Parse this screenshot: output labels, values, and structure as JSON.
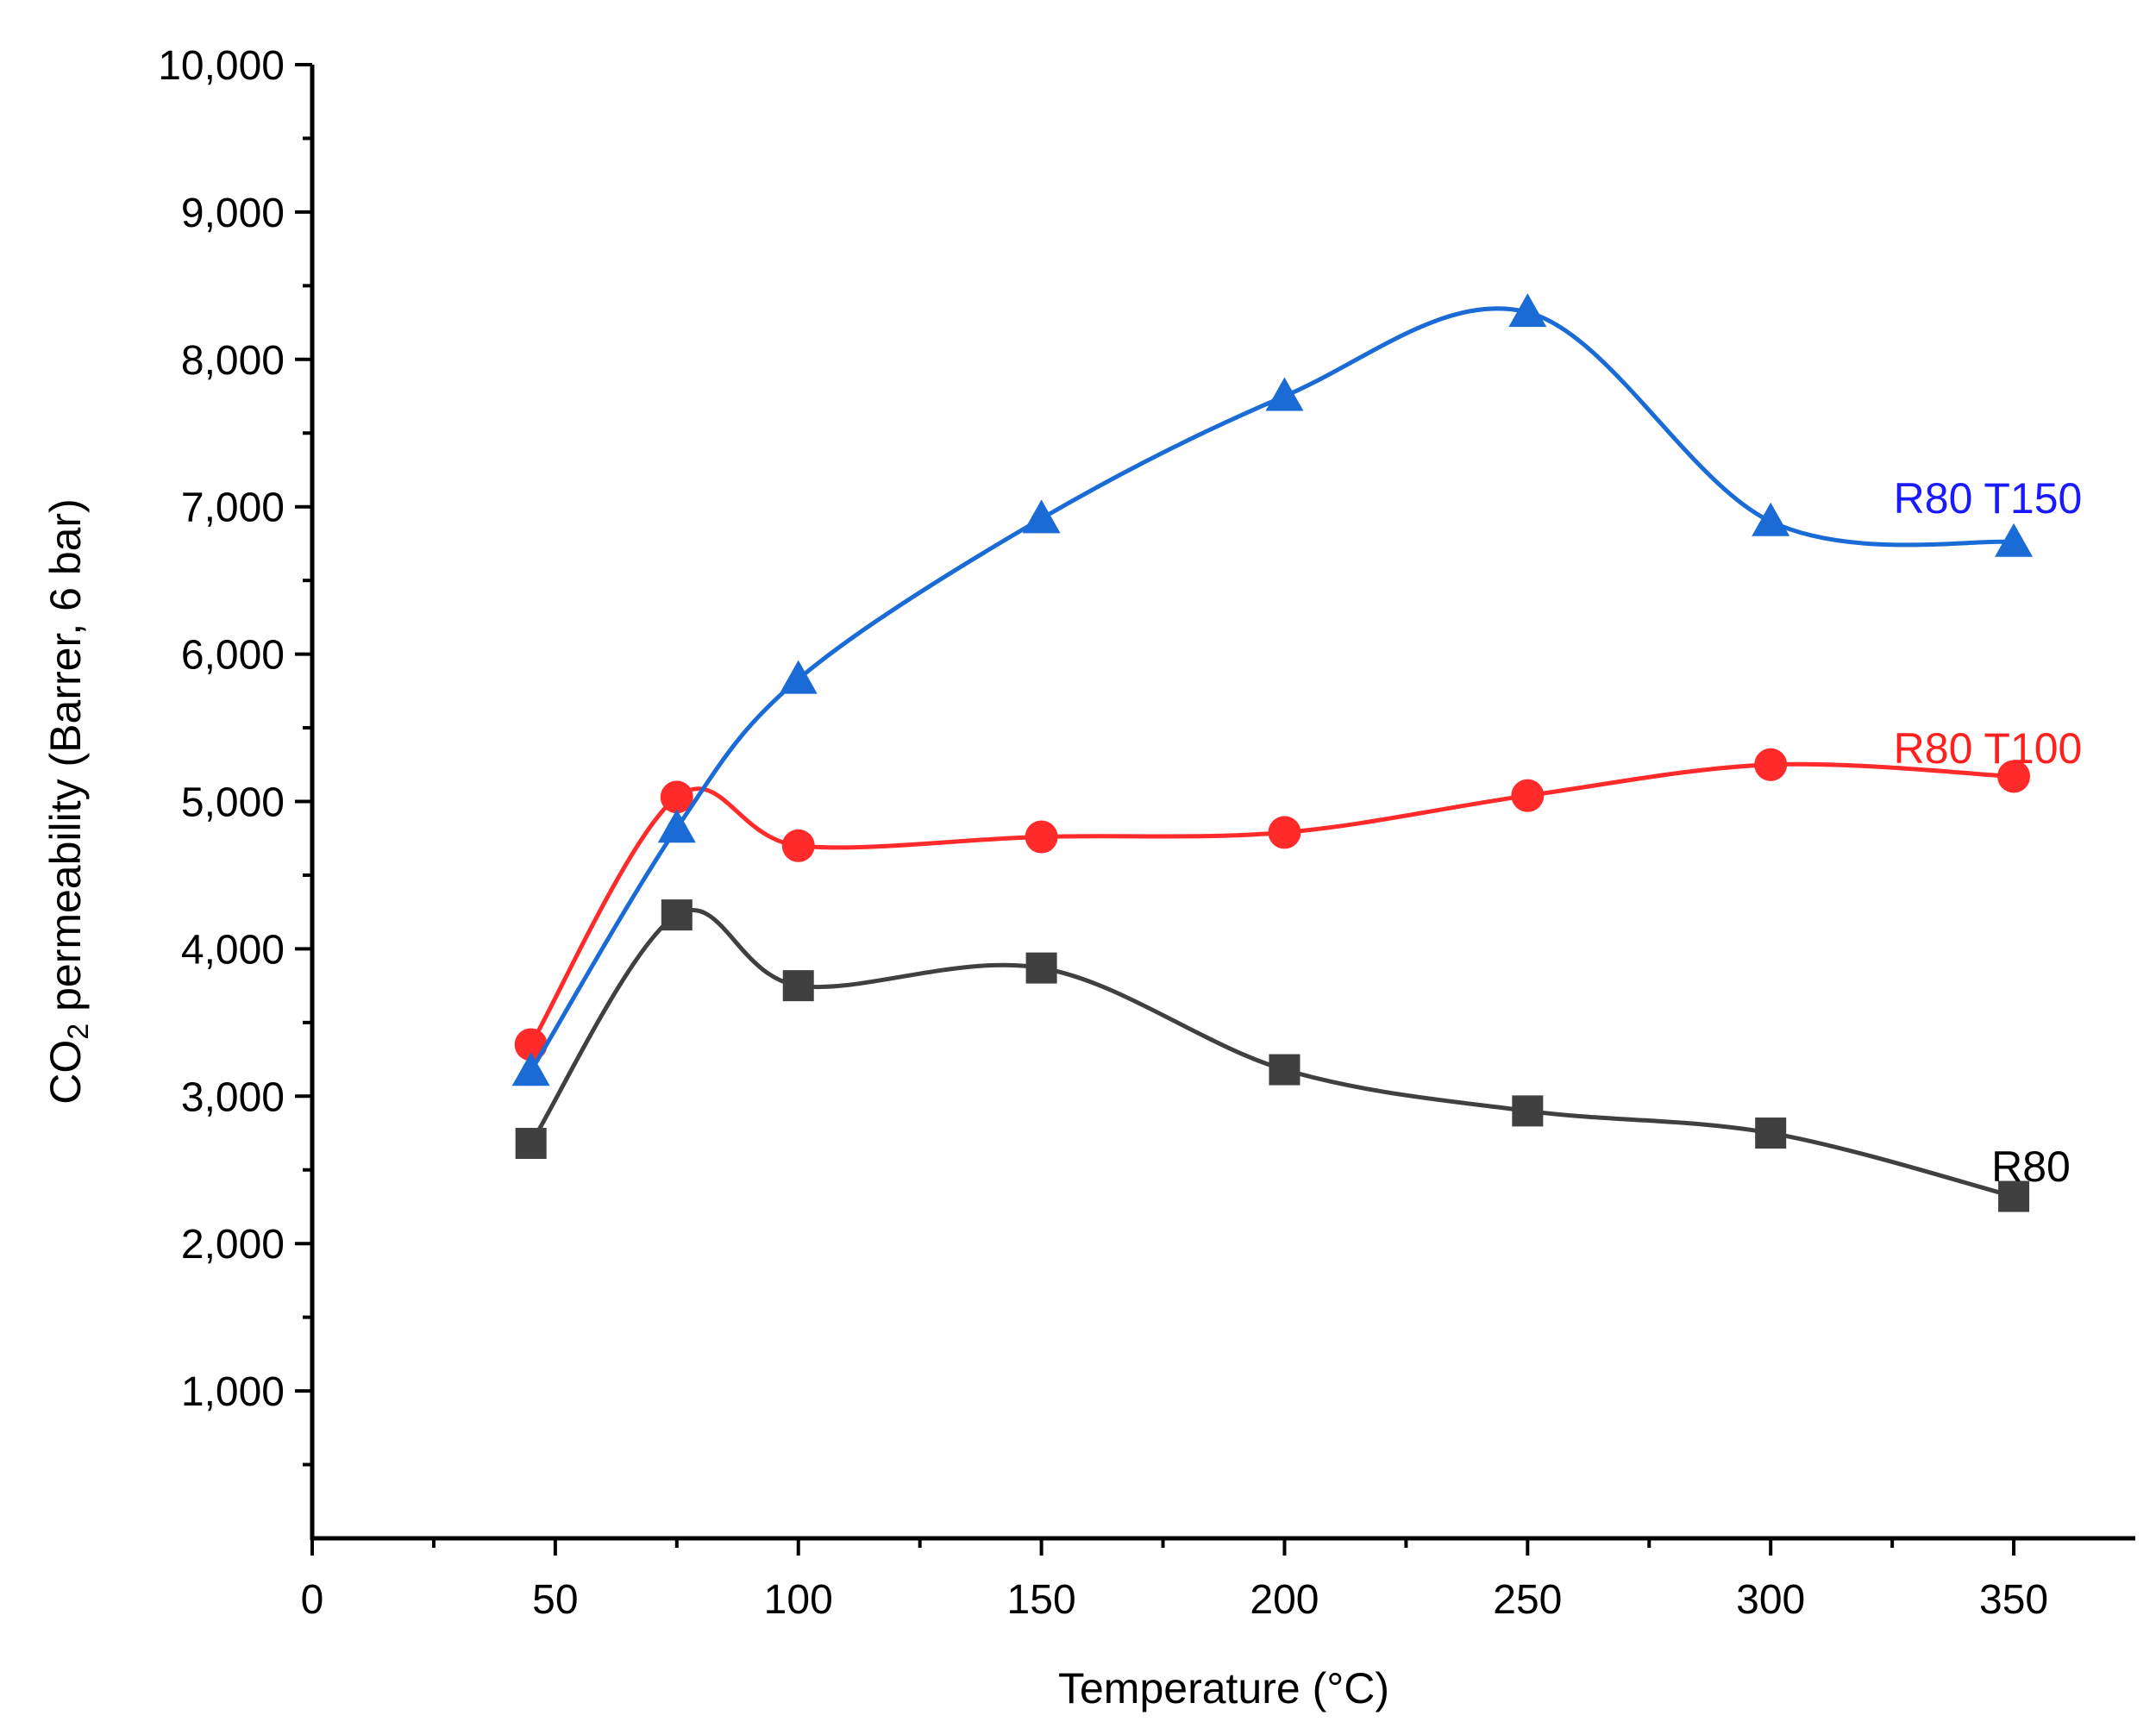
{
  "chart_data": {
    "type": "line",
    "title": "",
    "xlabel": "Temperature (°C)",
    "ylabel": {
      "prefix": "CO",
      "subscript": "2",
      "suffix": " permeability (Barrer, 6 bar)"
    },
    "xlim": [
      0,
      375
    ],
    "ylim": [
      0,
      10000
    ],
    "x_ticks": [
      0,
      50,
      100,
      150,
      200,
      250,
      300,
      350
    ],
    "x_tick_labels": [
      "0",
      "50",
      "100",
      "150",
      "200",
      "250",
      "300",
      "350"
    ],
    "y_ticks": [
      1000,
      2000,
      3000,
      4000,
      5000,
      6000,
      7000,
      8000,
      9000,
      10000
    ],
    "y_tick_labels": [
      "1,000",
      "2,000",
      "3,000",
      "4,000",
      "5,000",
      "6,000",
      "7,000",
      "8,000",
      "9,000",
      "10,000"
    ],
    "grid": false,
    "smoothing": "spline",
    "x": [
      45,
      75,
      100,
      150,
      200,
      250,
      300,
      350
    ],
    "series": [
      {
        "name": "R80",
        "marker": "square",
        "color": "#404040",
        "label_color": "#000000",
        "values": [
          2680,
          4230,
          3750,
          3870,
          3180,
          2900,
          2750,
          2320
        ]
      },
      {
        "name": "R80 T100",
        "marker": "circle",
        "color": "#ff2a2a",
        "label_color": "#ff2020",
        "values": [
          3350,
          5030,
          4700,
          4760,
          4790,
          5040,
          5250,
          5170
        ]
      },
      {
        "name": "R80 T150",
        "marker": "triangle",
        "color": "#1a6bd6",
        "label_color": "#1a1aff",
        "values": [
          3170,
          4820,
          5830,
          6920,
          7750,
          8320,
          6900,
          6760
        ]
      }
    ]
  }
}
